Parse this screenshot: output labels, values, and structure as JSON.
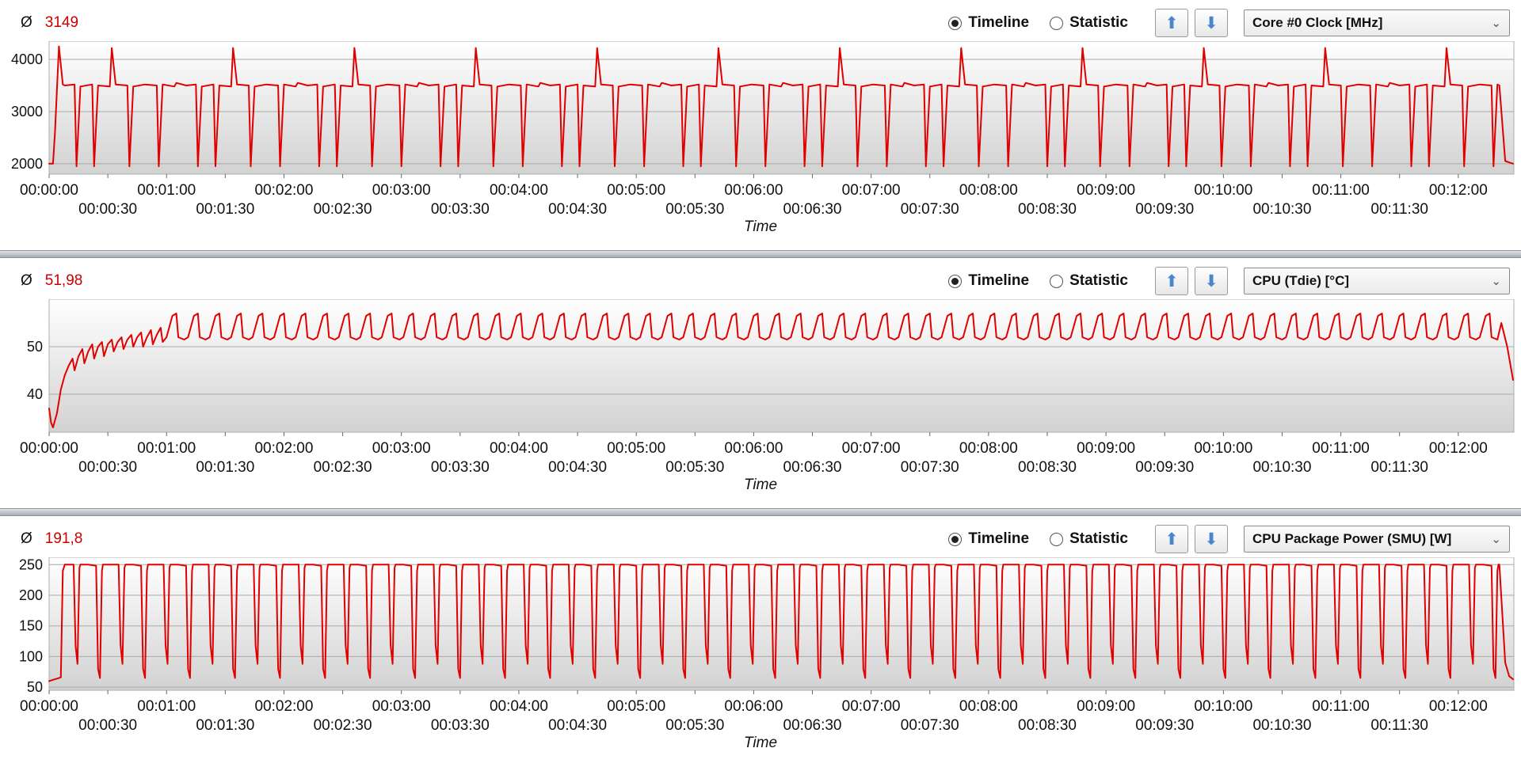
{
  "colors": {
    "line_red": "#e10000",
    "average_red": "#cc0000",
    "arrow_blue": "#4a86c8",
    "plot_gradient_top": "#ffffff",
    "plot_gradient_bottom": "#d2d2d2"
  },
  "icons": {
    "average_symbol": "Ø",
    "up_arrow": "⬆",
    "down_arrow": "⬇",
    "dropdown_chevron": "⌄"
  },
  "panels": [
    {
      "average_value": "3149",
      "timeline_label": "Timeline",
      "statistic_label": "Statistic",
      "timeline_selected": true,
      "sensor_name": "Core #0 Clock [MHz]",
      "time_axis_label": "Time"
    },
    {
      "average_value": "51,98",
      "timeline_label": "Timeline",
      "statistic_label": "Statistic",
      "timeline_selected": true,
      "sensor_name": "CPU (Tdie) [°C]",
      "time_axis_label": "Time"
    },
    {
      "average_value": "191,8",
      "timeline_label": "Timeline",
      "statistic_label": "Statistic",
      "timeline_selected": true,
      "sensor_name": "CPU Package Power (SMU) [W]",
      "time_axis_label": "Time"
    }
  ],
  "chart_data": [
    {
      "type": "line",
      "title": "Core #0 Clock [MHz]",
      "xlabel": "Time",
      "ylabel": "MHz",
      "average": 3149,
      "x_max": 748,
      "x_tick_interval": 30,
      "ylim": [
        1800,
        4350
      ],
      "y_ticks": [
        2000,
        3000,
        4000
      ],
      "grid": true,
      "legend": false,
      "x_ticks_minutes": {
        "start": 0,
        "step": 60,
        "labels": [
          "00:00:00",
          "00:01:00",
          "00:02:00",
          "00:03:00",
          "00:04:00",
          "00:05:00",
          "00:06:00",
          "00:07:00",
          "00:08:00",
          "00:09:00",
          "00:10:00",
          "00:11:00",
          "00:12:00"
        ]
      },
      "x_ticks_half": {
        "start": 30,
        "step": 60,
        "labels": [
          "00:00:30",
          "00:01:30",
          "00:02:30",
          "00:03:30",
          "00:04:30",
          "00:05:30",
          "00:06:30",
          "00:07:30",
          "00:08:30",
          "00:09:30",
          "00:10:30",
          "00:11:30"
        ]
      },
      "series": [
        {
          "name": "Core #0 Clock",
          "color": "#e10000",
          "intro_points": [
            [
              0,
              2000
            ],
            [
              2,
              2000
            ],
            [
              3,
              2600
            ],
            [
              5,
              4250
            ],
            [
              7,
              3520
            ],
            [
              8,
              3500
            ]
          ],
          "cycle_seconds": 62,
          "cycle_points": [
            [
              0,
              3500
            ],
            [
              5,
              3520
            ],
            [
              6,
              1950
            ],
            [
              8,
              3480
            ],
            [
              14,
              3520
            ],
            [
              15,
              1950
            ],
            [
              17,
              3500
            ],
            [
              23,
              3480
            ],
            [
              24,
              4220
            ],
            [
              26,
              3520
            ],
            [
              32,
              3500
            ],
            [
              33,
              1950
            ],
            [
              35,
              3480
            ],
            [
              41,
              3520
            ],
            [
              47,
              3500
            ],
            [
              48,
              1950
            ],
            [
              50,
              3520
            ],
            [
              56,
              3480
            ],
            [
              57,
              3550
            ],
            [
              62,
              3500
            ]
          ],
          "outro_points": [
            [
              741,
              3500
            ],
            [
              744,
              2050
            ],
            [
              748,
              2000
            ]
          ]
        }
      ]
    },
    {
      "type": "line",
      "title": "CPU (Tdie) [°C]",
      "xlabel": "Time",
      "ylabel": "°C",
      "average": 51.98,
      "x_max": 748,
      "x_tick_interval": 30,
      "ylim": [
        32,
        60
      ],
      "y_ticks": [
        40,
        50
      ],
      "grid": true,
      "legend": false,
      "x_ticks_minutes": {
        "start": 0,
        "step": 60,
        "labels": [
          "00:00:00",
          "00:01:00",
          "00:02:00",
          "00:03:00",
          "00:04:00",
          "00:05:00",
          "00:06:00",
          "00:07:00",
          "00:08:00",
          "00:09:00",
          "00:10:00",
          "00:11:00",
          "00:12:00"
        ]
      },
      "x_ticks_half": {
        "start": 30,
        "step": 60,
        "labels": [
          "00:00:30",
          "00:01:30",
          "00:02:30",
          "00:03:30",
          "00:04:30",
          "00:05:30",
          "00:06:30",
          "00:07:30",
          "00:08:30",
          "00:09:30",
          "00:10:30",
          "00:11:30"
        ]
      },
      "series": [
        {
          "name": "CPU (Tdie)",
          "color": "#e10000",
          "intro_points": [
            [
              0,
              37
            ],
            [
              1,
              34
            ],
            [
              2,
              33
            ],
            [
              4,
              36
            ],
            [
              6,
              41
            ],
            [
              8,
              44
            ],
            [
              10,
              46
            ],
            [
              12,
              47.5
            ],
            [
              13,
              45
            ],
            [
              15,
              48
            ],
            [
              17,
              49.5
            ],
            [
              18,
              46.5
            ],
            [
              20,
              49
            ],
            [
              22,
              50.5
            ],
            [
              23,
              47.5
            ],
            [
              25,
              50
            ],
            [
              27,
              51
            ],
            [
              28,
              48
            ],
            [
              30,
              50.5
            ],
            [
              32,
              51.5
            ],
            [
              33,
              49
            ],
            [
              35,
              51
            ],
            [
              37,
              52
            ],
            [
              38,
              49.5
            ],
            [
              40,
              51.5
            ],
            [
              42,
              52.5
            ],
            [
              43,
              50
            ],
            [
              45,
              52
            ],
            [
              47,
              53
            ],
            [
              48,
              50
            ],
            [
              50,
              52
            ],
            [
              52,
              53.5
            ],
            [
              53,
              50.5
            ],
            [
              55,
              52.5
            ],
            [
              57,
              54
            ],
            [
              58,
              51
            ],
            [
              60,
              52
            ]
          ],
          "cycle_seconds": 11,
          "cycle_points": [
            [
              0,
              52
            ],
            [
              3,
              56.5
            ],
            [
              5,
              57
            ],
            [
              6,
              52
            ],
            [
              9,
              51.5
            ],
            [
              11,
              52
            ]
          ],
          "outro_points": [
            [
              742,
              55
            ],
            [
              745,
              50
            ],
            [
              748,
              43
            ]
          ]
        }
      ]
    },
    {
      "type": "line",
      "title": "CPU Package Power (SMU) [W]",
      "xlabel": "Time",
      "ylabel": "W",
      "average": 191.8,
      "x_max": 748,
      "x_tick_interval": 30,
      "ylim": [
        45,
        262
      ],
      "y_ticks": [
        50,
        100,
        150,
        200,
        250
      ],
      "grid": true,
      "legend": false,
      "x_ticks_minutes": {
        "start": 0,
        "step": 60,
        "labels": [
          "00:00:00",
          "00:01:00",
          "00:02:00",
          "00:03:00",
          "00:04:00",
          "00:05:00",
          "00:06:00",
          "00:07:00",
          "00:08:00",
          "00:09:00",
          "00:10:00",
          "00:11:00",
          "00:12:00"
        ]
      },
      "x_ticks_half": {
        "start": 30,
        "step": 60,
        "labels": [
          "00:00:30",
          "00:01:30",
          "00:02:30",
          "00:03:30",
          "00:04:30",
          "00:05:30",
          "00:06:30",
          "00:07:30",
          "00:08:30",
          "00:09:30",
          "00:10:30",
          "00:11:30"
        ]
      },
      "series": [
        {
          "name": "CPU Package Power",
          "color": "#e10000",
          "intro_points": [
            [
              0,
              60
            ],
            [
              2,
              62
            ],
            [
              4,
              64
            ],
            [
              6,
              66
            ],
            [
              7,
              240
            ],
            [
              8,
              250
            ]
          ],
          "cycle_seconds": 23,
          "cycle_points": [
            [
              0,
              250
            ],
            [
              4.5,
              250
            ],
            [
              5.5,
              118
            ],
            [
              6.5,
              88
            ],
            [
              7.5,
              245
            ],
            [
              8,
              250
            ],
            [
              12,
              250
            ],
            [
              16,
              248
            ],
            [
              17,
              80
            ],
            [
              18,
              65
            ],
            [
              19,
              240
            ],
            [
              19.5,
              250
            ],
            [
              23,
              250
            ]
          ],
          "outro_points": [
            [
              741,
              250
            ],
            [
              744,
              90
            ],
            [
              746,
              68
            ],
            [
              748,
              63
            ]
          ]
        }
      ]
    }
  ]
}
